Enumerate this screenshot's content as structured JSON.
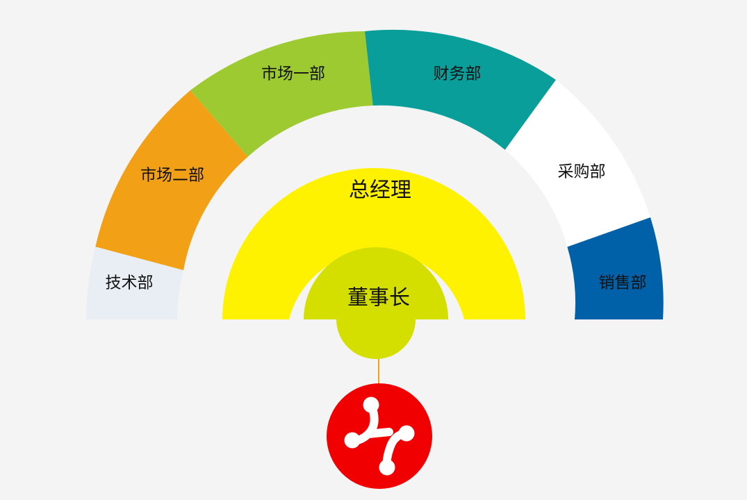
{
  "org": {
    "chairman": {
      "label": "董事长",
      "color": "#d4df00"
    },
    "general_manager": {
      "label": "总经理",
      "color": "#fff200"
    },
    "departments": [
      {
        "label": "技术部",
        "color": "#e8eef4"
      },
      {
        "label": "市场二部",
        "color": "#f2a116"
      },
      {
        "label": "市场一部",
        "color": "#9dca30"
      },
      {
        "label": "财务部",
        "color": "#0a9e9a"
      },
      {
        "label": "采购部",
        "color": "#ffffff"
      },
      {
        "label": "销售部",
        "color": "#0060a8"
      }
    ],
    "connector_color": "#f2a116",
    "logo": {
      "name": "brand-logo",
      "color": "#f00000"
    }
  }
}
